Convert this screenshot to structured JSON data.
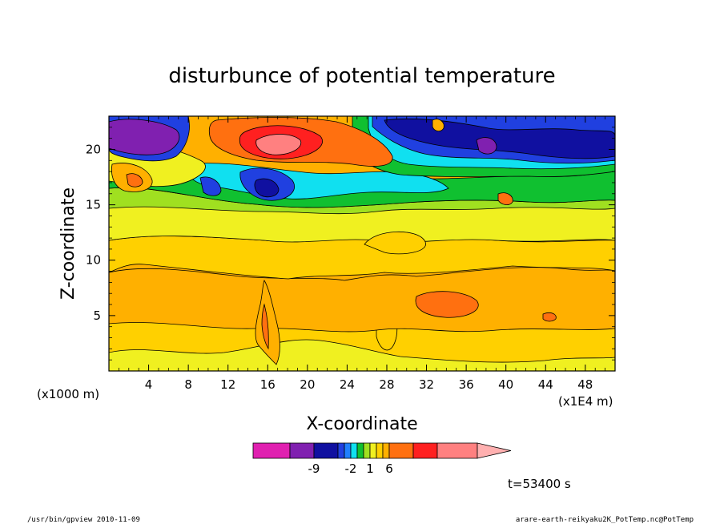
{
  "chart_data": {
    "type": "heatmap",
    "title": "disturbunce of potential temperature",
    "xlabel": "X-coordinate",
    "ylabel": "Z-coordinate",
    "x_unit_left": "(x1000 m)",
    "x_unit_right": "(x1E4 m)",
    "xlim": [
      0,
      51
    ],
    "ylim": [
      0,
      23
    ],
    "x_ticks": [
      "4",
      "8",
      "12",
      "16",
      "20",
      "24",
      "28",
      "32",
      "36",
      "40",
      "44",
      "48"
    ],
    "y_ticks": [
      "5",
      "10",
      "15",
      "20"
    ],
    "colorbar_labels": [
      "-9",
      "-2",
      "1",
      "6"
    ],
    "colorbar_colors": [
      "#e020b0",
      "#8020b0",
      "#1010a0",
      "#2040e0",
      "#2080ff",
      "#10e0f0",
      "#10c030",
      "#a0e020",
      "#f0f020",
      "#ffd000",
      "#ffb000",
      "#ff7010",
      "#ff2020",
      "#ff8080",
      "#ffb0b0"
    ],
    "time_label": "t=53400 s"
  },
  "footer": {
    "left": "/usr/bin/gpview   2010-11-09",
    "right": "arare-earth-reikyaku2K_PotTemp.nc@PotTemp"
  }
}
